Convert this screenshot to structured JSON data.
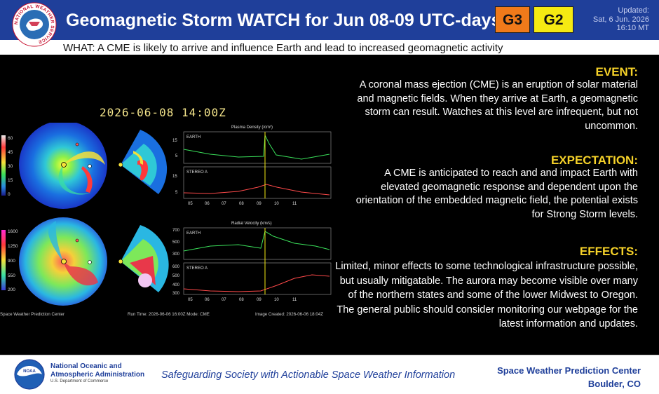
{
  "header": {
    "title": "Geomagnetic Storm WATCH for Jun 08-09 UTC-days",
    "levels": [
      "G3",
      "G2"
    ],
    "updated_label": "Updated:",
    "updated_date": "Sat, 6 Jun. 2026",
    "updated_time": "16:10 MT",
    "logo_text": "NATIONAL WEATHER SERVICE"
  },
  "what": {
    "text": "WHAT: A CME is likely to arrive and influence Earth and lead to increased geomagnetic activity"
  },
  "sections": {
    "event": {
      "title": "EVENT:",
      "body": "A coronal mass ejection (CME) is an eruption of solar material and magnetic fields. When they arrive at Earth, a geomagnetic storm can result. Watches at this level are infrequent, but not uncommon."
    },
    "expectation": {
      "title": "EXPECTATION:",
      "body": "A CME is anticipated to reach and and impact Earth with elevated geomagnetic response and dependent upon the orientation of the embedded magnetic field, the potential exists for Strong Storm levels."
    },
    "effects": {
      "title": "EFFECTS:",
      "body": "Limited, minor effects to some technological infrastructure possible, but usually mitigatable. The aurora may become visible over many of the northern states and some of the lower Midwest to Oregon. The general public should consider monitoring our webpage for the latest information and updates."
    }
  },
  "model": {
    "timestamp": "2026-06-08 14:00Z",
    "density_title": "Plasma Density (/cm³)",
    "velocity_title": "Radial Velocity (km/s)",
    "earth_label": "EARTH",
    "stereo_label": "STEREO A",
    "density_scale": [
      "60",
      "45",
      "30",
      "15",
      "0"
    ],
    "velocity_scale": [
      "1600",
      "1250",
      "900",
      "550",
      "200"
    ],
    "density_yticks": [
      "15",
      "5"
    ],
    "velocity_earth_yticks": [
      "700",
      "500",
      "300"
    ],
    "velocity_stereo_yticks": [
      "600",
      "500",
      "400",
      "300"
    ],
    "xticks": [
      "05",
      "06",
      "07",
      "08",
      "09",
      "10",
      "11"
    ],
    "footer_left": "Space Weather Prediction Center",
    "footer_mid": "Run Time: 2026-06-06 16:00Z   Mode: CME",
    "footer_right": "Image Created: 2026-06-06 18:04Z"
  },
  "footer": {
    "noaa_line1": "National Oceanic and",
    "noaa_line2": "Atmospheric Administration",
    "noaa_dept": "U.S. Department of Commerce",
    "noaa_logo_text": "NOAA",
    "tagline": "Safeguarding Society with Actionable Space Weather Information",
    "swpc_name": "Space Weather Prediction Center",
    "swpc_location": "Boulder, CO"
  },
  "colors": {
    "header_bg": "#1f3f9a",
    "g3": "#f07a1a",
    "g2": "#f5ea12",
    "section_title": "#f6d229"
  }
}
